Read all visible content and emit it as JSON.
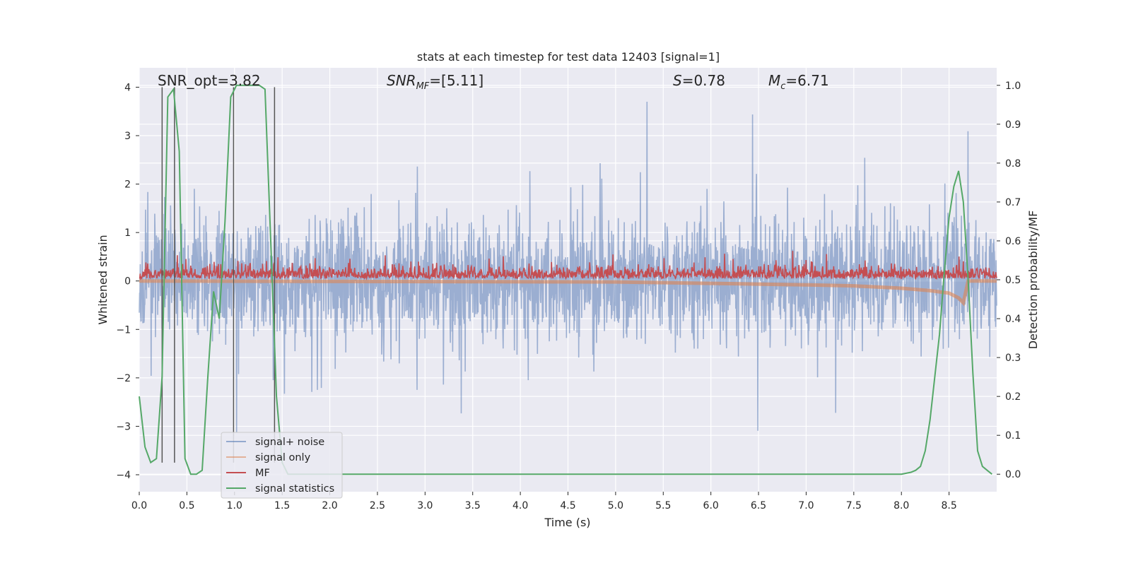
{
  "chart_data": {
    "type": "line",
    "title": "stats at each timestep for test data 12403 [signal=1]",
    "xlabel": "Time (s)",
    "ylabel": "Whitened strain",
    "ylabel_right": "Detection probability/MF",
    "xlim": [
      0,
      9
    ],
    "ylim": [
      -4.35,
      4.4
    ],
    "ylim_right": [
      -0.045,
      1.045
    ],
    "xticks": [
      "0.0",
      "0.5",
      "1.0",
      "1.5",
      "2.0",
      "2.5",
      "3.0",
      "3.5",
      "4.0",
      "4.5",
      "5.0",
      "5.5",
      "6.0",
      "6.5",
      "7.0",
      "7.5",
      "8.0",
      "8.5"
    ],
    "xtick_values": [
      0,
      0.5,
      1,
      1.5,
      2,
      2.5,
      3,
      3.5,
      4,
      4.5,
      5,
      5.5,
      6,
      6.5,
      7,
      7.5,
      8,
      8.5
    ],
    "yticks": [
      "−4",
      "−3",
      "−2",
      "−1",
      "0",
      "1",
      "2",
      "3",
      "4"
    ],
    "ytick_values": [
      -4,
      -3,
      -2,
      -1,
      0,
      1,
      2,
      3,
      4
    ],
    "yticks_right": [
      "0.0",
      "0.1",
      "0.2",
      "0.3",
      "0.4",
      "0.5",
      "0.6",
      "0.7",
      "0.8",
      "0.9",
      "1.0"
    ],
    "ytick_values_right": [
      0,
      0.1,
      0.2,
      0.3,
      0.4,
      0.5,
      0.6,
      0.7,
      0.8,
      0.9,
      1.0
    ],
    "annotations": {
      "snr_opt": "SNR_opt=3.82",
      "snr_mf_main": "SNR",
      "snr_mf_sub": "MF",
      "snr_mf_value": "=[5.11]",
      "s_main": "S",
      "s_value": "=0.78",
      "mc_main": "M",
      "mc_sub": "c",
      "mc_value": "=6.71"
    },
    "legend": [
      "signal+ noise",
      "signal only",
      "MF",
      "signal statistics"
    ],
    "legend_position": "lower-left",
    "colors": {
      "noise": "#4c72b0",
      "signal": "#dd8452",
      "mf": "#c44e52",
      "stat": "#55a868",
      "vline": "#555555",
      "background": "#eaeaf2",
      "grid": "#ffffff"
    },
    "series": [
      {
        "name": "signal statistics",
        "axis": "right",
        "x": [
          0,
          0.06,
          0.12,
          0.18,
          0.24,
          0.3,
          0.36,
          0.42,
          0.48,
          0.54,
          0.6,
          0.66,
          0.72,
          0.78,
          0.84,
          0.9,
          0.96,
          1.02,
          1.08,
          1.14,
          1.2,
          1.26,
          1.32,
          1.38,
          1.44,
          1.5,
          1.56,
          1.62,
          1.7,
          2.0,
          3.0,
          4.0,
          5.0,
          6.0,
          7.0,
          7.5,
          7.8,
          7.9,
          8.0,
          8.1,
          8.15,
          8.2,
          8.25,
          8.3,
          8.35,
          8.4,
          8.45,
          8.5,
          8.55,
          8.6,
          8.65,
          8.7,
          8.75,
          8.8,
          8.85,
          8.9,
          8.95
        ],
        "y": [
          0.2,
          0.07,
          0.03,
          0.04,
          0.25,
          0.97,
          0.99,
          0.83,
          0.04,
          0.0,
          0.0,
          0.01,
          0.25,
          0.47,
          0.4,
          0.65,
          0.97,
          1.0,
          1.0,
          1.0,
          1.0,
          1.0,
          0.99,
          0.6,
          0.2,
          0.03,
          0.0,
          0.0,
          0.0,
          0.0,
          0.0,
          0.0,
          0.0,
          0.0,
          0.0,
          0.0,
          0.0,
          0.0,
          0.0,
          0.005,
          0.01,
          0.02,
          0.06,
          0.14,
          0.25,
          0.36,
          0.52,
          0.66,
          0.74,
          0.78,
          0.7,
          0.5,
          0.26,
          0.06,
          0.02,
          0.01,
          0.0
        ]
      },
      {
        "name": "signal only",
        "axis": "left",
        "x": [
          0,
          5.0,
          6.0,
          7.0,
          7.5,
          8.0,
          8.3,
          8.5,
          8.6,
          8.65,
          8.7,
          9.0
        ],
        "y": [
          0,
          -0.02,
          -0.05,
          -0.08,
          -0.1,
          -0.15,
          -0.2,
          -0.25,
          -0.35,
          -0.45,
          0,
          0
        ]
      },
      {
        "name": "signal+ noise",
        "axis": "left",
        "note": "dense noise trace, approximately +/-1.6 envelope with spikes to +/-3.7"
      },
      {
        "name": "MF",
        "axis": "left",
        "note": "dense matched-filter trace, range approximately 0 to 0.7"
      }
    ],
    "vertical_lines_x": [
      0.24,
      0.37,
      0.99,
      1.42
    ]
  }
}
